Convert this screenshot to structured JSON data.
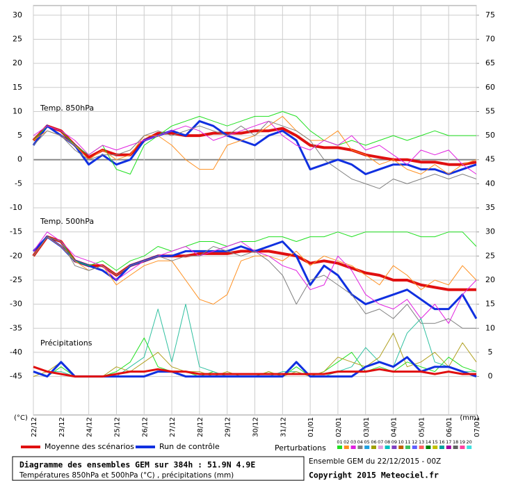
{
  "chart_data": {
    "type": "line",
    "categories": [
      "22/12",
      null,
      "23/12",
      null,
      "24/12",
      null,
      "25/12",
      null,
      "26/12",
      null,
      "27/12",
      null,
      "28/12",
      null,
      "29/12",
      null,
      "30/12",
      null,
      "31/12",
      null,
      "01/01",
      null,
      "02/01",
      null,
      "03/01",
      null,
      "04/01",
      null,
      "05/01",
      null,
      "06/01",
      null,
      "07/01"
    ],
    "ylim": [
      -53,
      32
    ],
    "yticks": [
      30,
      25,
      20,
      15,
      10,
      5,
      0,
      -5,
      -10,
      -15,
      -20,
      -25,
      -30,
      -35,
      -40,
      -45
    ],
    "y2lim": [
      -8,
      77
    ],
    "y2ticks": [
      75,
      70,
      65,
      60,
      55,
      50,
      45,
      40,
      35,
      30,
      25,
      20,
      15,
      10,
      5,
      0
    ],
    "y_label": "(°C)",
    "y2_label": "(mm)",
    "grid": true,
    "annotations": [
      "Temp. 850hPa",
      "Temp. 500hPa",
      "Précipitations"
    ],
    "series": [
      {
        "name": "Moyenne des scénarios",
        "color": "#e01010",
        "width": 4,
        "values": [
          4,
          7,
          6,
          3,
          0.5,
          2,
          1,
          1,
          4,
          5.5,
          5.5,
          5,
          5,
          5.5,
          5.5,
          5.5,
          6,
          6,
          6.5,
          5,
          3,
          2.5,
          2.5,
          2,
          1,
          0.5,
          0,
          0,
          -0.5,
          -0.5,
          -1,
          -1,
          -0.5
        ]
      },
      {
        "name": "Run de contrôle",
        "color": "#1030e0",
        "width": 3,
        "values": [
          3,
          7,
          5,
          3,
          -1,
          1,
          -1,
          0,
          4,
          5,
          6,
          5,
          8,
          7,
          5,
          4,
          3,
          5,
          6,
          4,
          -2,
          -1,
          0,
          -1,
          -3,
          -2,
          -1,
          -1,
          -2,
          -2,
          -3,
          -2,
          -1
        ]
      },
      {
        "name": "01",
        "color": "#20e020",
        "width": 1,
        "values": [
          4,
          7,
          6,
          3,
          1,
          3,
          -2,
          -3,
          3,
          5,
          7,
          8,
          9,
          8,
          7,
          8,
          9,
          9,
          10,
          9,
          6,
          4,
          3,
          4,
          3,
          4,
          5,
          4,
          5,
          6,
          5,
          5,
          5
        ]
      },
      {
        "name": "02",
        "color": "#ff9020",
        "width": 1,
        "values": [
          4,
          6,
          5,
          3,
          0,
          2,
          0,
          1,
          5,
          5,
          3,
          0,
          -2,
          -2,
          3,
          4,
          5,
          7,
          9,
          6,
          4,
          4,
          6,
          2,
          1,
          -1,
          0,
          -2,
          -3,
          -1,
          -3,
          -1,
          0
        ]
      },
      {
        "name": "03",
        "color": "#e020e0",
        "width": 1,
        "values": [
          5,
          7,
          6,
          4,
          1,
          3,
          2,
          3,
          4,
          5,
          6,
          7,
          6,
          4,
          5,
          6,
          7,
          8,
          5,
          3,
          2,
          4,
          3,
          5,
          2,
          3,
          1,
          -1,
          2,
          1,
          2,
          -1,
          -3
        ]
      },
      {
        "name": "04",
        "color": "#808080",
        "width": 1,
        "values": [
          3,
          6,
          5,
          2,
          0,
          1,
          1,
          2,
          5,
          6,
          5,
          6,
          7,
          6,
          5,
          7,
          5,
          8,
          7,
          6,
          4,
          0,
          -2,
          -4,
          -5,
          -6,
          -4,
          -5,
          -4,
          -3,
          -4,
          -3,
          -4
        ]
      },
      {
        "name": "Moyenne des scénarios",
        "color": "#e01010",
        "width": 4,
        "values": [
          -20,
          -16,
          -17,
          -21,
          -22,
          -22,
          -24,
          -22,
          -21,
          -20,
          -20,
          -20,
          -19.5,
          -19.5,
          -19.5,
          -19,
          -19,
          -19,
          -19.5,
          -20,
          -21.5,
          -21,
          -21.5,
          -22.5,
          -23.5,
          -24,
          -25,
          -25,
          -26,
          -26.5,
          -27,
          -27,
          -27
        ]
      },
      {
        "name": "Run de contrôle",
        "color": "#1030e0",
        "width": 3,
        "values": [
          -19,
          -16,
          -18,
          -21,
          -22,
          -23,
          -25,
          -22,
          -21,
          -20,
          -20,
          -19,
          -19,
          -19,
          -19,
          -18,
          -19,
          -18,
          -17,
          -20,
          -26,
          -22,
          -24,
          -28,
          -30,
          -29,
          -28,
          -27,
          -29,
          -31,
          -31,
          -28,
          -33
        ]
      },
      {
        "name": "01",
        "color": "#20e020",
        "width": 1,
        "values": [
          -20,
          -16,
          -17,
          -21,
          -22,
          -21,
          -23,
          -21,
          -20,
          -18,
          -19,
          -18,
          -17,
          -17,
          -18,
          -17,
          -17,
          -16,
          -16,
          -17,
          -16,
          -16,
          -15,
          -16,
          -15,
          -15,
          -15,
          -15,
          -16,
          -16,
          -15,
          -15,
          -18
        ]
      },
      {
        "name": "02",
        "color": "#ff9020",
        "width": 1,
        "values": [
          -20,
          -16,
          -18,
          -21,
          -23,
          -22,
          -26,
          -24,
          -22,
          -21,
          -21,
          -25,
          -29,
          -30,
          -28,
          -21,
          -20,
          -20,
          -21,
          -19,
          -22,
          -20,
          -21,
          -22,
          -24,
          -26,
          -22,
          -24,
          -27,
          -25,
          -26,
          -22,
          -25
        ]
      },
      {
        "name": "03",
        "color": "#e020e0",
        "width": 1,
        "values": [
          -19,
          -15,
          -17,
          -20,
          -21,
          -22,
          -25,
          -23,
          -21,
          -20,
          -19,
          -18,
          -20,
          -19,
          -18,
          -17,
          -19,
          -20,
          -22,
          -23,
          -27,
          -26,
          -20,
          -23,
          -28,
          -30,
          -31,
          -29,
          -33,
          -30,
          -34,
          -28,
          -25
        ]
      },
      {
        "name": "04",
        "color": "#808080",
        "width": 1,
        "values": [
          -20,
          -16,
          -17,
          -22,
          -23,
          -22,
          -24,
          -22,
          -21,
          -20,
          -21,
          -20,
          -20,
          -18,
          -19,
          -20,
          -19,
          -21,
          -24,
          -30,
          -25,
          -24,
          -26,
          -28,
          -32,
          -31,
          -33,
          -30,
          -34,
          -34,
          -33,
          -35,
          -35
        ]
      },
      {
        "name": "01",
        "color": "#20e020",
        "width": 1,
        "axis": "y2",
        "values": [
          1,
          0,
          2,
          0,
          0,
          0,
          1,
          3,
          8,
          2,
          1,
          1,
          0,
          1,
          0,
          0,
          0,
          1,
          0,
          2,
          0,
          1,
          3,
          5,
          1,
          2,
          1,
          3,
          2,
          1,
          4,
          2,
          1
        ]
      },
      {
        "name": "02",
        "color": "#30c0a0",
        "width": 1,
        "axis": "y2",
        "values": [
          2,
          1,
          1,
          0,
          0,
          0,
          0,
          2,
          4,
          14,
          3,
          15,
          2,
          1,
          0,
          0,
          0,
          0,
          1,
          1,
          0,
          0,
          1,
          2,
          6,
          3,
          2,
          9,
          12,
          3,
          2,
          1,
          1
        ]
      },
      {
        "name": "03",
        "color": "#b0a020",
        "width": 1,
        "axis": "y2",
        "values": [
          0,
          1,
          3,
          0,
          0,
          0,
          2,
          1,
          3,
          5,
          2,
          1,
          1,
          0,
          1,
          0,
          0,
          1,
          0,
          1,
          0,
          1,
          4,
          3,
          2,
          4,
          9,
          2,
          3,
          5,
          2,
          7,
          3
        ]
      },
      {
        "name": "Run de contrôle",
        "color": "#1030e0",
        "width": 3,
        "axis": "y2",
        "values": [
          1,
          0,
          3,
          0,
          0,
          0,
          0,
          0,
          0,
          1,
          1,
          0,
          0,
          0,
          0,
          0,
          0,
          0,
          0,
          3,
          0,
          0,
          0,
          0,
          2,
          3,
          2,
          4,
          1,
          2,
          2,
          1,
          0
        ]
      },
      {
        "name": "Moyenne des scénarios",
        "color": "#e01010",
        "width": 3,
        "axis": "y2",
        "values": [
          2,
          1,
          0.5,
          0,
          0,
          0,
          0.5,
          1,
          1,
          1.5,
          1,
          1,
          0.5,
          0.5,
          0.5,
          0.5,
          0.5,
          0.5,
          0.5,
          0.5,
          0.5,
          0.5,
          1,
          1,
          1,
          1.5,
          1,
          1,
          1,
          0.5,
          1,
          0.5,
          0.5
        ]
      }
    ],
    "perturbations": {
      "title": "Perturbations",
      "members": [
        {
          "name": "01",
          "color": "#20e020"
        },
        {
          "name": "02",
          "color": "#ff9020"
        },
        {
          "name": "03",
          "color": "#e020e0"
        },
        {
          "name": "04",
          "color": "#808080"
        },
        {
          "name": "05",
          "color": "#20a0e0"
        },
        {
          "name": "06",
          "color": "#a0a000"
        },
        {
          "name": "07",
          "color": "#e0a0e0"
        },
        {
          "name": "08",
          "color": "#00c0c0"
        },
        {
          "name": "09",
          "color": "#8040c0"
        },
        {
          "name": "10",
          "color": "#c06000"
        },
        {
          "name": "11",
          "color": "#40c060"
        },
        {
          "name": "12",
          "color": "#6060ff"
        },
        {
          "name": "13",
          "color": "#ff6060"
        },
        {
          "name": "14",
          "color": "#008000"
        },
        {
          "name": "15",
          "color": "#c0c000"
        },
        {
          "name": "16",
          "color": "#00a0a0"
        },
        {
          "name": "17",
          "color": "#a000a0"
        },
        {
          "name": "18",
          "color": "#606060"
        },
        {
          "name": "19",
          "color": "#ff40a0"
        },
        {
          "name": "20",
          "color": "#40e0e0"
        }
      ]
    }
  },
  "footer": {
    "title": "Diagramme des ensembles GEM sur 384h : 51.9N 4.9E",
    "subtitle": "Températures 850hPa et 500hPa (°C) , précipitations (mm)",
    "run": "Ensemble GEM du 22/12/2015 - 00Z",
    "copyright": "Copyright 2015 Meteociel.fr"
  }
}
